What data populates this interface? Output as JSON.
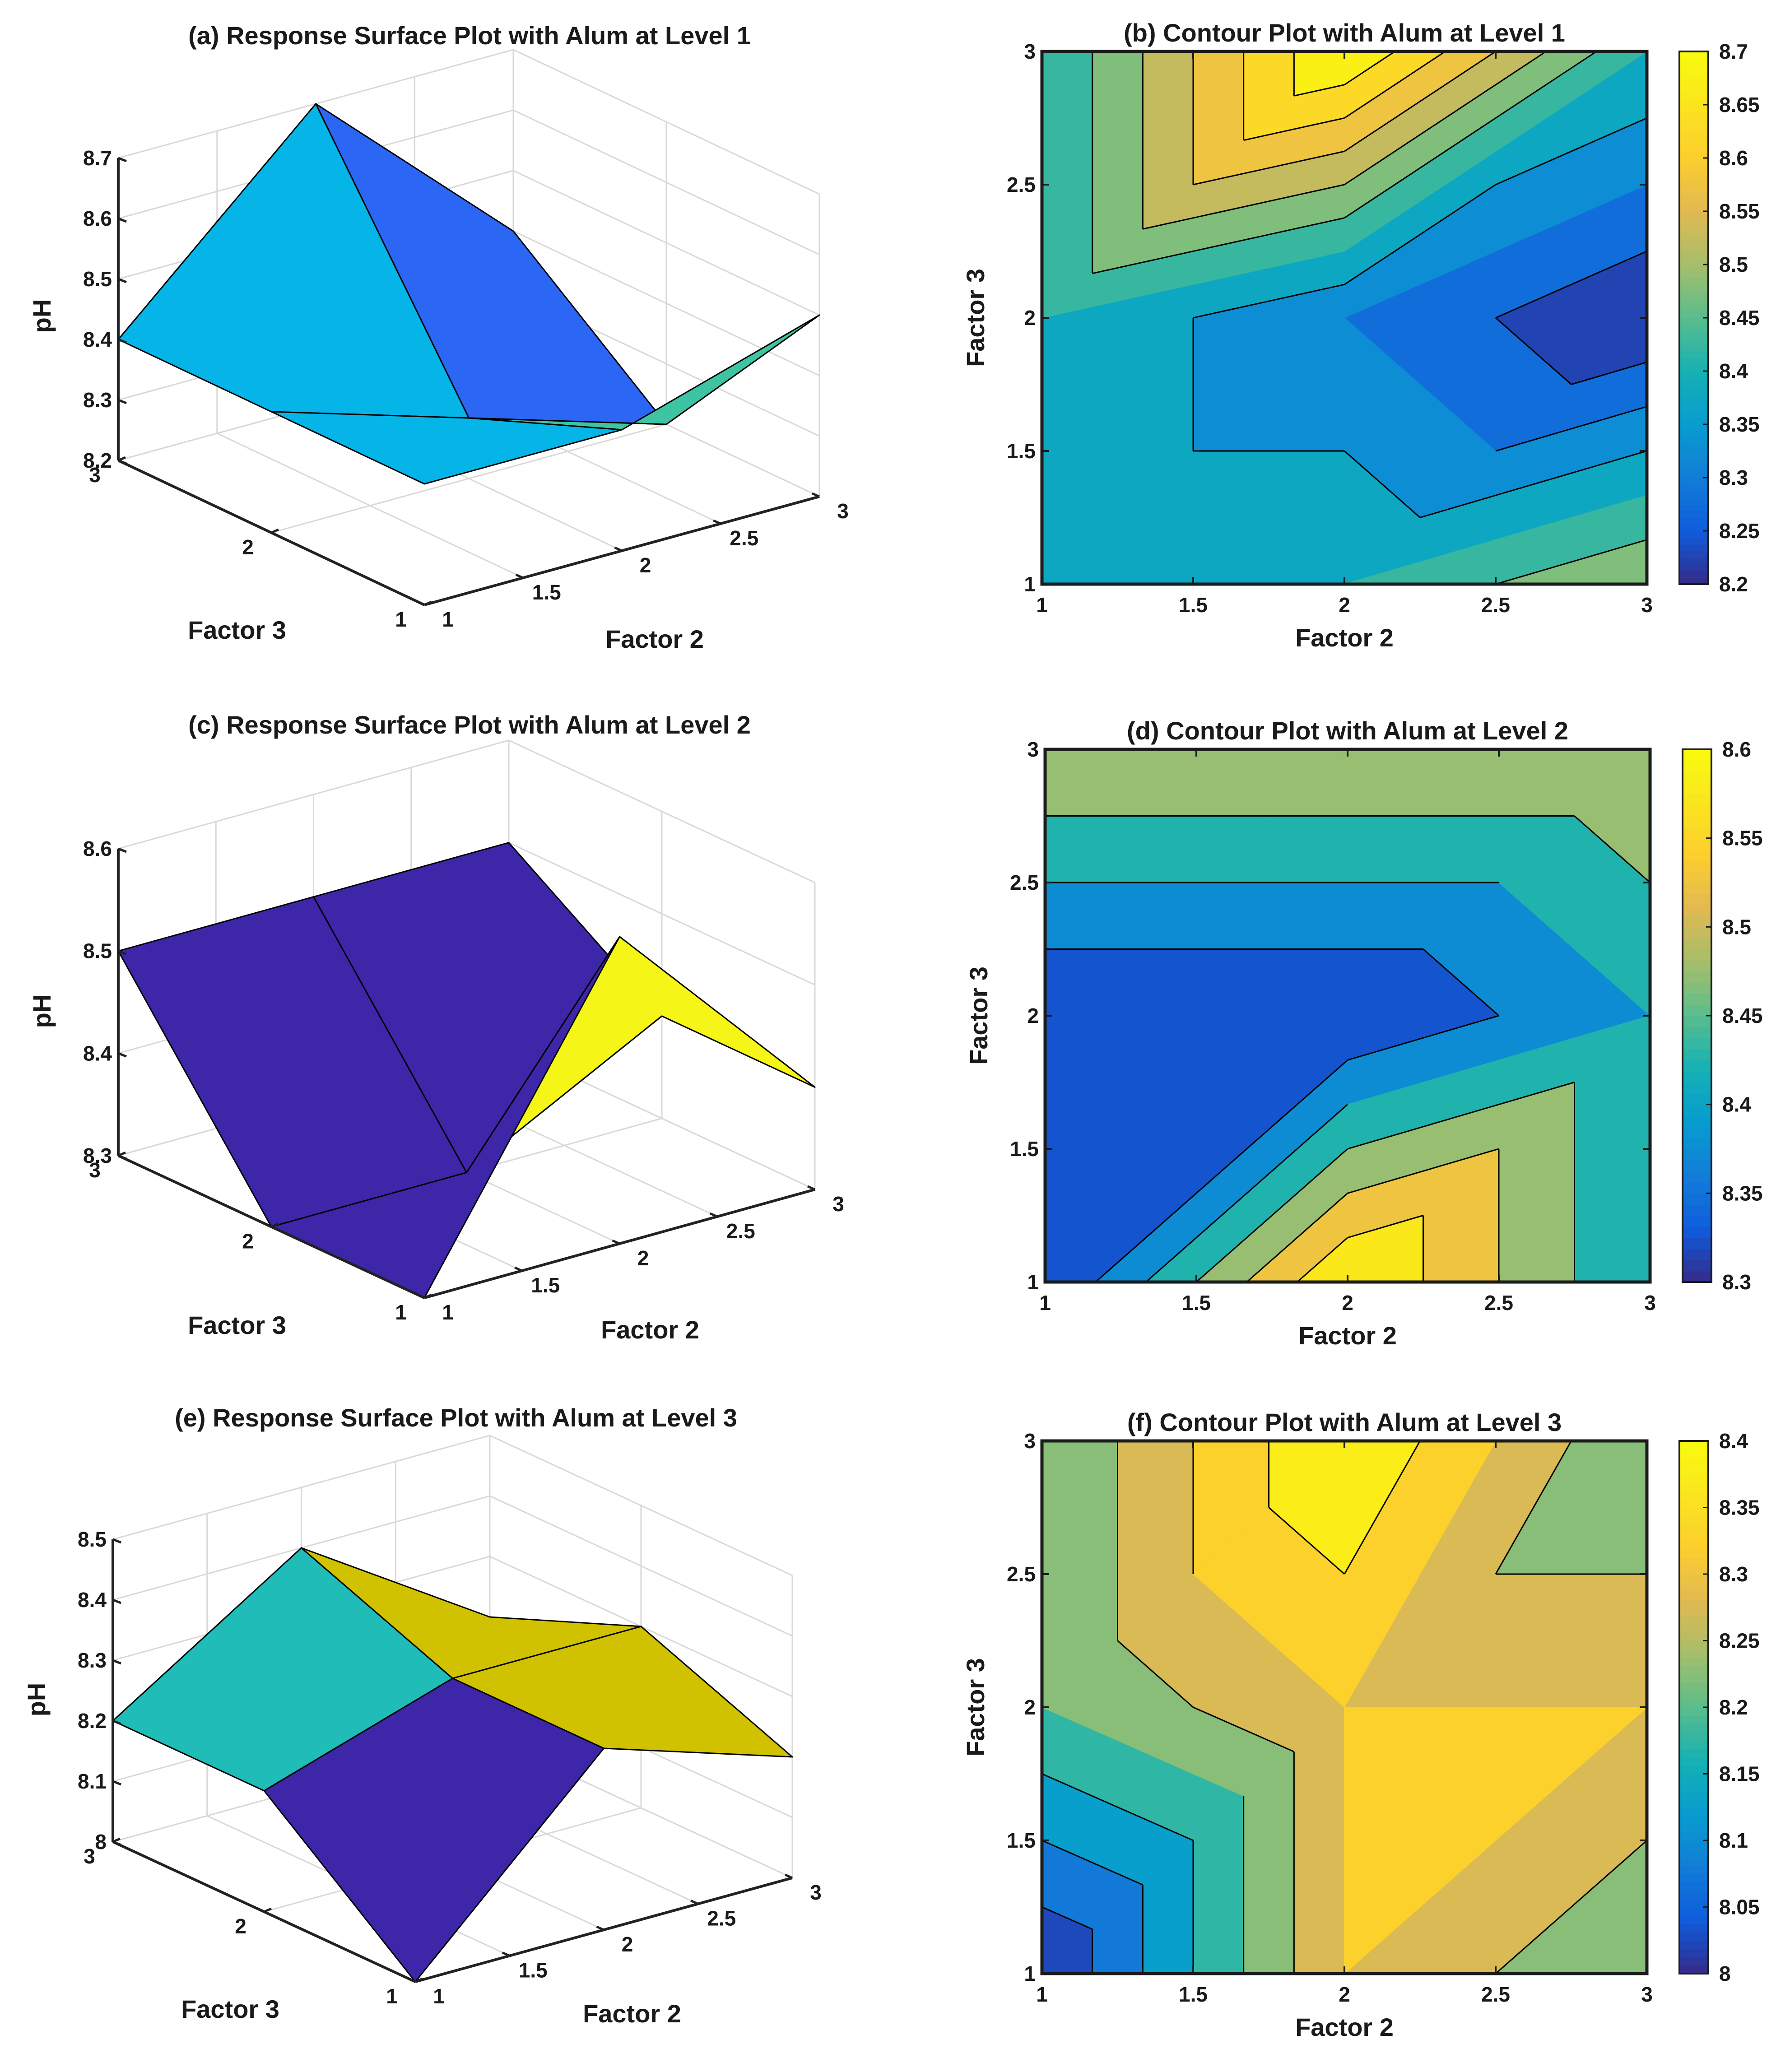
{
  "chart_data": [
    {
      "panel": "a",
      "type": "surface",
      "title": "(a) Response Surface Plot with Alum at Level 1",
      "xlabel": "Factor 2",
      "ylabel": "Factor 3",
      "zlabel": "pH",
      "x": [
        1,
        2,
        3
      ],
      "y": [
        1,
        2,
        3
      ],
      "xticks": [
        "1",
        "1.5",
        "2",
        "2.5",
        "3"
      ],
      "yticks": [
        "1",
        "2",
        "3"
      ],
      "zticks": [
        "8.2",
        "8.3",
        "8.4",
        "8.5",
        "8.6",
        "8.7"
      ],
      "zlim": [
        8.2,
        8.7
      ],
      "z": [
        [
          8.4,
          8.4,
          8.5
        ],
        [
          8.4,
          8.3,
          8.2
        ],
        [
          8.4,
          8.7,
          8.4
        ]
      ],
      "colorbar": null,
      "face_colors": [
        [
          "#06b5e8",
          "#3ec4a2"
        ],
        [
          "#06b5e8",
          "#2b66f5"
        ]
      ]
    },
    {
      "panel": "b",
      "type": "contour",
      "title": "(b) Contour Plot with Alum at Level 1",
      "xlabel": "Factor 2",
      "ylabel": "Factor 3",
      "x": [
        1,
        2,
        3
      ],
      "y": [
        1,
        2,
        3
      ],
      "xticks": [
        "1",
        "1.5",
        "2",
        "2.5",
        "3"
      ],
      "yticks": [
        "1",
        "1.5",
        "2",
        "2.5",
        "3"
      ],
      "z": [
        [
          8.4,
          8.4,
          8.5
        ],
        [
          8.4,
          8.3,
          8.2
        ],
        [
          8.4,
          8.7,
          8.4
        ]
      ],
      "levels": [
        8.2,
        8.25,
        8.3,
        8.35,
        8.4,
        8.45,
        8.5,
        8.55,
        8.6,
        8.65,
        8.7
      ],
      "colorbar": {
        "min": 8.2,
        "max": 8.7,
        "ticks": [
          "8.2",
          "8.25",
          "8.3",
          "8.35",
          "8.4",
          "8.45",
          "8.5",
          "8.55",
          "8.6",
          "8.65",
          "8.7"
        ]
      }
    },
    {
      "panel": "c",
      "type": "surface",
      "title": "(c) Response Surface Plot with Alum at Level 2",
      "xlabel": "Factor 2",
      "ylabel": "Factor 3",
      "zlabel": "pH",
      "x": [
        1,
        2,
        3
      ],
      "y": [
        1,
        2,
        3
      ],
      "xticks": [
        "1",
        "1.5",
        "2",
        "2.5",
        "3"
      ],
      "yticks": [
        "1",
        "2",
        "3"
      ],
      "zticks": [
        "8.3",
        "8.4",
        "8.5",
        "8.6"
      ],
      "zlim": [
        8.3,
        8.6
      ],
      "z": [
        [
          8.3,
          8.6,
          8.4
        ],
        [
          8.3,
          8.3,
          8.4
        ],
        [
          8.5,
          8.5,
          8.5
        ]
      ],
      "colorbar": null,
      "face_colors": [
        [
          "#3d26a8",
          "#f5f518"
        ],
        [
          "#3d26a8",
          "#3d26a8"
        ]
      ]
    },
    {
      "panel": "d",
      "type": "contour",
      "title": "(d) Contour Plot with Alum at Level 2",
      "xlabel": "Factor 2",
      "ylabel": "Factor 3",
      "x": [
        1,
        2,
        3
      ],
      "y": [
        1,
        2,
        3
      ],
      "xticks": [
        "1",
        "1.5",
        "2",
        "2.5",
        "3"
      ],
      "yticks": [
        "1",
        "1.5",
        "2",
        "2.5",
        "3"
      ],
      "z": [
        [
          8.3,
          8.6,
          8.4
        ],
        [
          8.3,
          8.3,
          8.4
        ],
        [
          8.5,
          8.5,
          8.5
        ]
      ],
      "levels": [
        8.3,
        8.35,
        8.4,
        8.45,
        8.5,
        8.55,
        8.6
      ],
      "colorbar": {
        "min": 8.3,
        "max": 8.6,
        "ticks": [
          "8.3",
          "8.35",
          "8.4",
          "8.45",
          "8.5",
          "8.55",
          "8.6"
        ]
      }
    },
    {
      "panel": "e",
      "type": "surface",
      "title": "(e) Response Surface Plot with Alum at Level 3",
      "xlabel": "Factor 2",
      "ylabel": "Factor 3",
      "zlabel": "pH",
      "x": [
        1,
        2,
        3
      ],
      "y": [
        1,
        2,
        3
      ],
      "xticks": [
        "1",
        "1.5",
        "2",
        "2.5",
        "3"
      ],
      "yticks": [
        "1",
        "2",
        "3"
      ],
      "zticks": [
        "8",
        "8.1",
        "8.2",
        "8.3",
        "8.4",
        "8.5"
      ],
      "zlim": [
        8.0,
        8.5
      ],
      "z": [
        [
          8.0,
          8.3,
          8.2
        ],
        [
          8.2,
          8.3,
          8.3
        ],
        [
          8.2,
          8.4,
          8.2
        ]
      ],
      "colorbar": null,
      "face_colors": [
        [
          "#3d26a8",
          "#d0c200"
        ],
        [
          "#1fbcb8",
          "#d0c200"
        ]
      ]
    },
    {
      "panel": "f",
      "type": "contour",
      "title": "(f) Contour Plot with Alum at Level 3",
      "xlabel": "Factor 2",
      "ylabel": "Factor 3",
      "x": [
        1,
        2,
        3
      ],
      "y": [
        1,
        2,
        3
      ],
      "xticks": [
        "1",
        "1.5",
        "2",
        "2.5",
        "3"
      ],
      "yticks": [
        "1",
        "1.5",
        "2",
        "2.5",
        "3"
      ],
      "z": [
        [
          8.0,
          8.3,
          8.2
        ],
        [
          8.2,
          8.3,
          8.3
        ],
        [
          8.2,
          8.4,
          8.2
        ]
      ],
      "levels": [
        8.0,
        8.05,
        8.1,
        8.15,
        8.2,
        8.25,
        8.3,
        8.35,
        8.4
      ],
      "colorbar": {
        "min": 8.0,
        "max": 8.4,
        "ticks": [
          "8",
          "8.05",
          "8.1",
          "8.15",
          "8.2",
          "8.25",
          "8.3",
          "8.35",
          "8.4"
        ]
      }
    }
  ]
}
